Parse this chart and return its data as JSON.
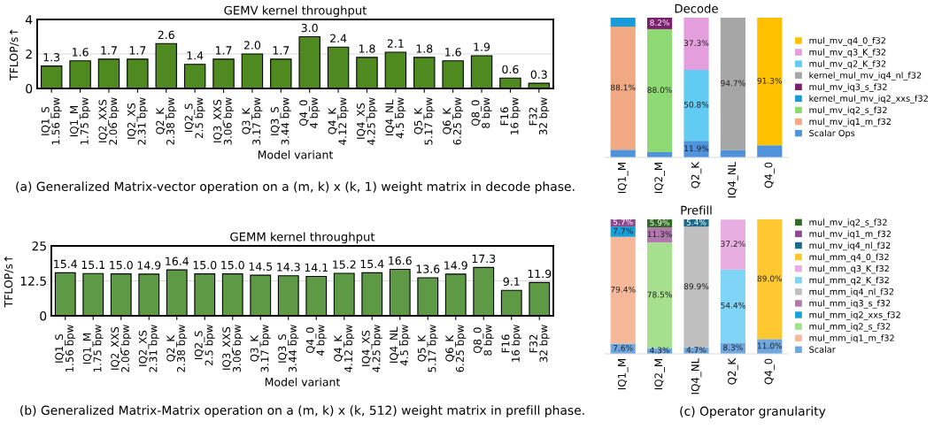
{
  "chart_data": [
    {
      "type": "bar",
      "title": "GEMV kernel throughput",
      "xlabel": "Model variant",
      "ylabel": "TFLOP/s↑",
      "categories": [
        "IQ1_S\n1.56 bpw",
        "IQ1_M\n1.75 bpw",
        "IQ2_XXS\n2.06 bpw",
        "IQ2_XS\n2.31 bpw",
        "Q2_K\n2.38 bpw",
        "IQ2_S\n2.5 bpw",
        "IQ3_XXS\n3.06 bpw",
        "Q3_K\n3.17 bpw",
        "IQ3_S\n3.44 bpw",
        "Q4_0\n4 bpw",
        "Q4_K\n4.12 bpw",
        "IQ4_XS\n4.25 bpw",
        "IQ4_NL\n4.5 bpw",
        "Q5_K\n5.17 bpw",
        "Q6_K\n6.25 bpw",
        "Q8_0\n8 bpw",
        "F16\n16 bpw",
        "F32\n32 bpw"
      ],
      "values": [
        1.3,
        1.6,
        1.7,
        1.7,
        2.6,
        1.4,
        1.7,
        2.0,
        1.7,
        3.0,
        2.4,
        1.8,
        2.1,
        1.8,
        1.6,
        1.9,
        0.6,
        0.3
      ],
      "color": "#4e8a1f",
      "ylim": [
        0,
        4
      ],
      "yticks": [
        0,
        2,
        4
      ],
      "grid": "y",
      "value_labels": [
        "1.3",
        "1.6",
        "1.7",
        "1.7",
        "2.6",
        "1.4",
        "1.7",
        "2.0",
        "1.7",
        "3.0",
        "2.4",
        "1.8",
        "2.1",
        "1.8",
        "1.6",
        "1.9",
        "0.6",
        "0.3"
      ],
      "annotations": [
        "(a) Generalized Matrix-vector operation on a (m, k) x (k, 1) weight matrix in decode phase."
      ]
    },
    {
      "type": "bar",
      "title": "GEMM kernel throughput",
      "xlabel": "Model variant",
      "ylabel": "TFLOP/s↑",
      "categories": [
        "IQ1_S\n1.56 bpw",
        "IQ1_M\n1.75 bpw",
        "IQ2_XXS\n2.06 bpw",
        "IQ2_XS\n2.31 bpw",
        "Q2_K\n2.38 bpw",
        "IQ2_S\n2.5 bpw",
        "IQ3_XXS\n3.06 bpw",
        "Q3_K\n3.17 bpw",
        "IQ3_S\n3.44 bpw",
        "Q4_0\n4 bpw",
        "Q4_K\n4.12 bpw",
        "IQ4_XS\n4.25 bpw",
        "IQ4_NL\n4.5 bpw",
        "Q5_K\n5.17 bpw",
        "Q6_K\n6.25 bpw",
        "Q8_0\n8 bpw",
        "F16\n16 bpw",
        "F32\n32 bpw"
      ],
      "values": [
        15.4,
        15.1,
        15.0,
        14.9,
        16.4,
        15.0,
        15.0,
        14.5,
        14.3,
        14.1,
        15.2,
        15.4,
        16.6,
        13.6,
        14.9,
        17.3,
        9.1,
        11.9
      ],
      "color": "#5e9a45",
      "ylim": [
        0,
        25
      ],
      "yticks": [
        0,
        12.5,
        25
      ],
      "grid": "y",
      "value_labels": [
        "15.4",
        "15.1",
        "15.0",
        "14.9",
        "16.4",
        "15.0",
        "15.0",
        "14.5",
        "14.3",
        "14.1",
        "15.2",
        "15.4",
        "16.6",
        "13.6",
        "14.9",
        "17.3",
        "9.1",
        "11.9"
      ],
      "annotations": [
        "(b) Generalized Matrix-Matrix operation on a (m, k) x (k, 512) weight matrix in prefill phase."
      ]
    },
    {
      "type": "bar",
      "title": "Decode",
      "stacked": true,
      "categories": [
        "IQ1_M",
        "IQ2_M",
        "Q2_K",
        "IQ4_NL",
        "Q4_0"
      ],
      "ylim": [
        0,
        100
      ],
      "tick_labels": "x",
      "legend": "right",
      "series": [
        {
          "name": "Scalar Ops",
          "color": "#4f93dc",
          "values": [
            5.5,
            3.8,
            11.9,
            5.3,
            8.7
          ],
          "value_labels": [
            null,
            null,
            "11.9%",
            null,
            null
          ]
        },
        {
          "name": "mul_mv_iq1_m_f32",
          "color": "#f1a983",
          "values": [
            88.1,
            0,
            0,
            0,
            0
          ],
          "value_labels": [
            "88.1%",
            null,
            null,
            null,
            null
          ]
        },
        {
          "name": "mul_mv_iq2_s_f32",
          "color": "#8ed973",
          "values": [
            0,
            88.0,
            0,
            0,
            0
          ],
          "value_labels": [
            null,
            "88.0%",
            null,
            null,
            null
          ]
        },
        {
          "name": "kernel_mul_mv_iq2_xxs_f32",
          "color": "#1a9bd7",
          "values": [
            6.4,
            0,
            0,
            0,
            0
          ],
          "value_labels": [
            null,
            null,
            null,
            null,
            null
          ]
        },
        {
          "name": "mul_mv_iq3_s_f32",
          "color": "#7b1f6e",
          "values": [
            0,
            8.2,
            0,
            0,
            0
          ],
          "value_labels": [
            null,
            "8.2%",
            null,
            null,
            null
          ]
        },
        {
          "name": "kernel_mul_mv_iq4_nl_f32",
          "color": "#a6a6a6",
          "values": [
            0,
            0,
            0,
            94.7,
            0
          ],
          "value_labels": [
            null,
            null,
            null,
            "94.7%",
            null
          ]
        },
        {
          "name": "mul_mv_q2_K_f32",
          "color": "#61cbf3",
          "values": [
            0,
            0,
            50.8,
            0,
            0
          ],
          "value_labels": [
            null,
            null,
            "50.8%",
            null,
            null
          ]
        },
        {
          "name": "mul_mv_q3_K_f32",
          "color": "#e49edd",
          "values": [
            0,
            0,
            37.3,
            0,
            0
          ],
          "value_labels": [
            null,
            null,
            "37.3%",
            null,
            null
          ]
        },
        {
          "name": "mul_mv_q4_0_f32",
          "color": "#ffc000",
          "values": [
            0,
            0,
            0,
            0,
            91.3
          ],
          "value_labels": [
            null,
            null,
            null,
            null,
            "91.3%"
          ]
        }
      ]
    },
    {
      "type": "bar",
      "title": "Prefill",
      "stacked": true,
      "categories": [
        "IQ1_M",
        "IQ2_M",
        "IQ4_NL",
        "Q2_K",
        "Q4_0"
      ],
      "ylim": [
        0,
        100
      ],
      "tick_labels": "x",
      "legend": "right",
      "annotations": [
        "(c) Operator granularity"
      ],
      "series": [
        {
          "name": "Scalar",
          "color": "#6fa8e0",
          "values": [
            7.6,
            4.3,
            4.7,
            8.3,
            11.0
          ],
          "value_labels": [
            "7.6%",
            "4.3%",
            "4.7%",
            "8.3%",
            "11.0%"
          ]
        },
        {
          "name": "mul_mm_iq1_m_f32",
          "color": "#f5b99a",
          "values": [
            79.4,
            0,
            0,
            0,
            0
          ],
          "value_labels": [
            "79.4%",
            null,
            null,
            null,
            null
          ]
        },
        {
          "name": "mul_mm_iq2_s_f32",
          "color": "#a6df8e",
          "values": [
            0,
            78.5,
            0,
            0,
            0
          ],
          "value_labels": [
            null,
            "78.5%",
            null,
            null,
            null
          ]
        },
        {
          "name": "mul_mm_iq2_xxs_f32",
          "color": "#1aa0d8",
          "values": [
            7.7,
            0,
            0,
            0,
            0
          ],
          "value_labels": [
            "7.7%",
            null,
            null,
            null,
            null
          ]
        },
        {
          "name": "mul_mm_iq3_s_f32",
          "color": "#b179ab",
          "values": [
            0,
            11.3,
            0,
            0,
            0
          ],
          "value_labels": [
            null,
            "11.3%",
            null,
            null,
            null
          ]
        },
        {
          "name": "mul_mm_iq4_nl_f32",
          "color": "#bfbfbf",
          "values": [
            0,
            0,
            89.9,
            0,
            0
          ],
          "value_labels": [
            null,
            null,
            "89.9%",
            null,
            null
          ]
        },
        {
          "name": "mul_mm_q2_K_f32",
          "color": "#80d4f5",
          "values": [
            0,
            0,
            0,
            54.4,
            0
          ],
          "value_labels": [
            null,
            null,
            null,
            "54.4%",
            null
          ]
        },
        {
          "name": "mul_mm_q3_K_f32",
          "color": "#e8aee2",
          "values": [
            0,
            0,
            0,
            37.2,
            0
          ],
          "value_labels": [
            null,
            null,
            null,
            "37.2%",
            null
          ]
        },
        {
          "name": "mul_mm_q4_0_f32",
          "color": "#ffc830",
          "values": [
            0,
            0,
            0,
            0,
            89.0
          ],
          "value_labels": [
            null,
            null,
            null,
            null,
            "89.0%"
          ]
        },
        {
          "name": "mul_mv_iq4_nl_f32",
          "color": "#1b6a8a",
          "values": [
            0,
            0,
            5.4,
            0,
            0
          ],
          "value_labels": [
            null,
            null,
            "5.4%",
            null,
            null
          ]
        },
        {
          "name": "mul_mv_iq1_m_f32",
          "color": "#8e4a8f",
          "values": [
            5.7,
            0,
            0,
            0,
            0
          ],
          "value_labels": [
            "5.7%",
            null,
            null,
            null,
            null
          ]
        },
        {
          "name": "mul_mv_iq2_s_f32",
          "color": "#2f6b24",
          "values": [
            0,
            5.9,
            0,
            0,
            0
          ],
          "value_labels": [
            null,
            "5.9%",
            null,
            null,
            null
          ]
        }
      ]
    }
  ]
}
